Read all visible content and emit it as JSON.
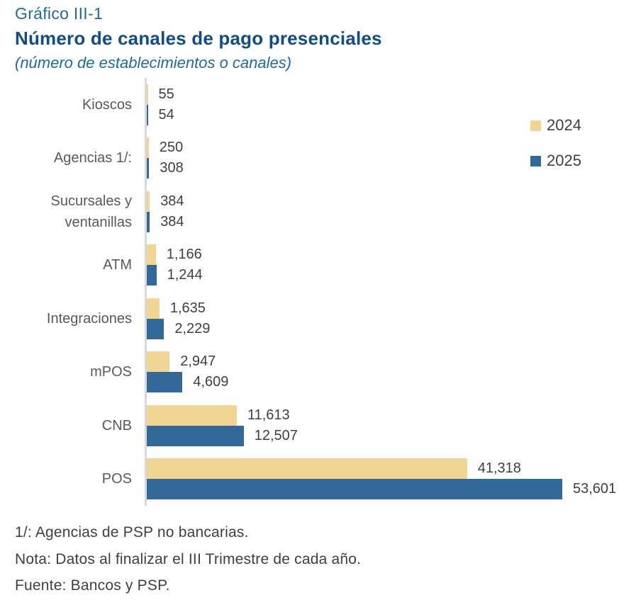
{
  "header": {
    "label": "Gráfico III-1",
    "title": "Número de canales de pago presenciales",
    "subtitle": "(número de establecimientos o canales)"
  },
  "legend": [
    {
      "label": "2024",
      "color": "#f2d592"
    },
    {
      "label": "2025",
      "color": "#31699b"
    }
  ],
  "chart_data": {
    "type": "bar",
    "orientation": "horizontal",
    "title": "Número de canales de pago presenciales",
    "subtitle": "(número de establecimientos o canales)",
    "xlabel": "",
    "ylabel": "",
    "xlim": [
      0,
      54500
    ],
    "grid": false,
    "legend_position": "top-right",
    "categories": [
      "Kioscos",
      "Agencias 1/:",
      "Sucursales y ventanillas",
      "ATM",
      "Integraciones",
      "mPOS",
      "CNB",
      "POS"
    ],
    "series": [
      {
        "name": "2024",
        "color": "#f2d592",
        "values": [
          55,
          250,
          384,
          1166,
          1635,
          2947,
          11613,
          41318
        ],
        "labels": [
          "55",
          "250",
          "384",
          "1,166",
          "1,635",
          "2,947",
          "11,613",
          "41,318"
        ]
      },
      {
        "name": "2025",
        "color": "#31699b",
        "values": [
          54,
          308,
          384,
          1244,
          2229,
          4609,
          12507,
          53601
        ],
        "labels": [
          "54",
          "308",
          "384",
          "1,244",
          "2,229",
          "4,609",
          "12,507",
          "53,601"
        ]
      }
    ]
  },
  "footnotes": [
    "1/: Agencias de PSP no bancarias.",
    "Nota: Datos al finalizar el III Trimestre de cada año.",
    "Fuente: Bancos y PSP."
  ],
  "colors": {
    "title_accent": "#0e4d8a",
    "subtitle_accent": "#1c6ba8",
    "axis_line": "#d9d9d9",
    "category_text": "#595959",
    "value_text": "#404040"
  }
}
